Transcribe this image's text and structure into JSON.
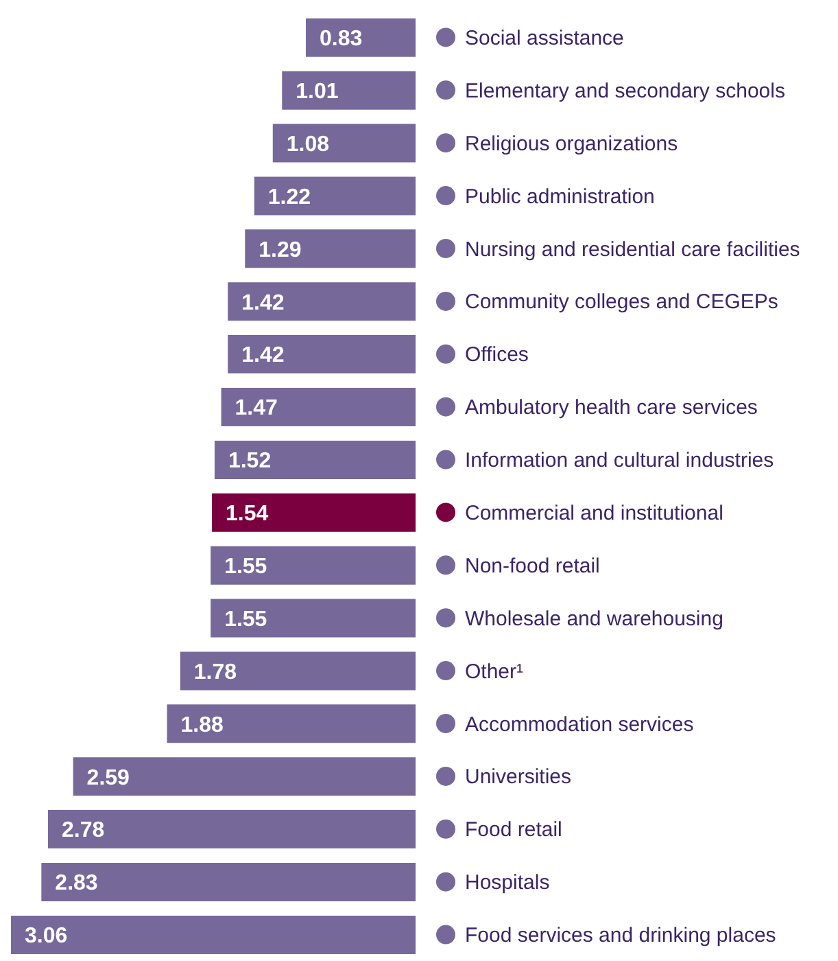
{
  "chart_data": {
    "type": "bar",
    "orientation": "horizontal",
    "data_labels": true,
    "categories": [
      "Social assistance",
      "Elementary and secondary schools",
      "Religious organizations",
      "Public administration",
      "Nursing and residential care facilities",
      "Community colleges and CEGEPs",
      "Offices",
      "Ambulatory health care services",
      "Information and cultural industries",
      "Commercial and institutional",
      "Non-food retail",
      "Wholesale and warehousing",
      "Other¹",
      "Accommodation services",
      "Universities",
      "Food retail",
      "Hospitals",
      "Food services and drinking places"
    ],
    "values": [
      0.83,
      1.01,
      1.08,
      1.22,
      1.29,
      1.42,
      1.42,
      1.47,
      1.52,
      1.54,
      1.55,
      1.55,
      1.78,
      1.88,
      2.59,
      2.78,
      2.83,
      3.06
    ],
    "colors": [
      "#76699a",
      "#76699a",
      "#76699a",
      "#76699a",
      "#76699a",
      "#76699a",
      "#76699a",
      "#76699a",
      "#76699a",
      "#7a0040",
      "#76699a",
      "#76699a",
      "#76699a",
      "#76699a",
      "#76699a",
      "#76699a",
      "#76699a",
      "#76699a"
    ]
  }
}
